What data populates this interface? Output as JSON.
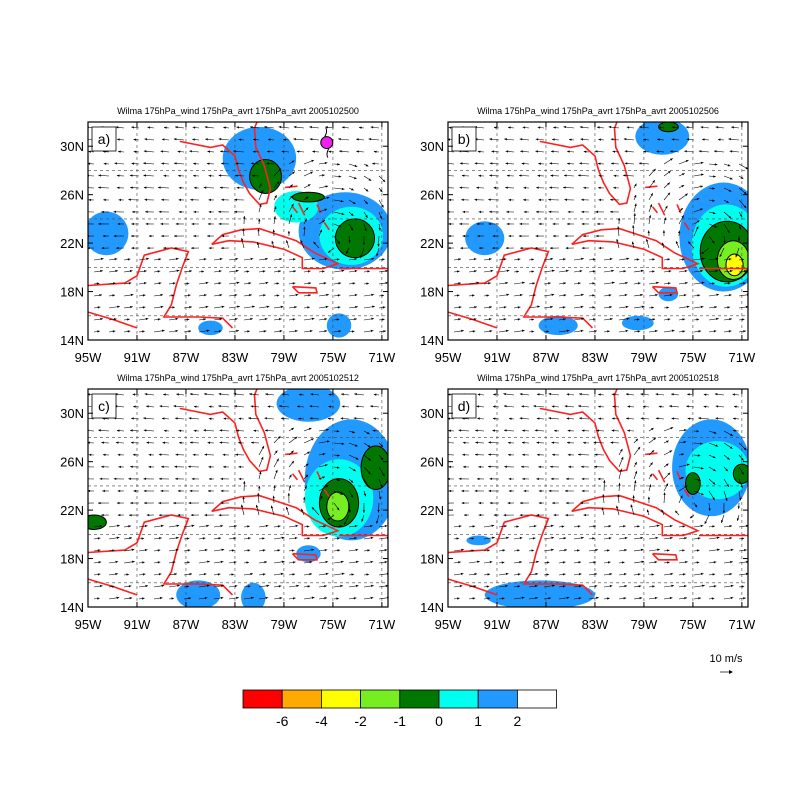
{
  "figure": {
    "panels": [
      {
        "label": "a)",
        "title": "Wilma 175hPa_wind 175hPa_avrt 175hPa_avrt 2005102500",
        "storm_marker": true
      },
      {
        "label": "b)",
        "title": "Wilma 175hPa_wind 175hPa_avrt 175hPa_avrt 2005102506",
        "storm_marker": false
      },
      {
        "label": "c)",
        "title": "Wilma 175hPa_wind 175hPa_avrt 175hPa_avrt 2005102512",
        "storm_marker": false
      },
      {
        "label": "d)",
        "title": "Wilma 175hPa_wind 175hPa_avrt 175hPa_avrt 2005102518",
        "storm_marker": false
      }
    ],
    "lat_ticks": [
      "14N",
      "18N",
      "22N",
      "26N",
      "30N"
    ],
    "lon_ticks": [
      "95W",
      "91W",
      "87W",
      "83W",
      "79W",
      "75W",
      "71W"
    ],
    "reference_vector": {
      "label": "10 m/s"
    },
    "colorbar": {
      "colors": [
        "#ff0000",
        "#ffaa00",
        "#ffff00",
        "#77ee22",
        "#007700",
        "#00ffee",
        "#2299ff",
        "#ffffff"
      ],
      "labels": [
        "-6",
        "-4",
        "-2",
        "-1",
        "0",
        "1",
        "2"
      ]
    },
    "colors": {
      "coastline": "#ff2020",
      "positive_fill_1": "#2299ff",
      "positive_fill_0": "#00ffee",
      "negative_fill": "#007700",
      "storm_marker": "#ee22ee"
    }
  }
}
